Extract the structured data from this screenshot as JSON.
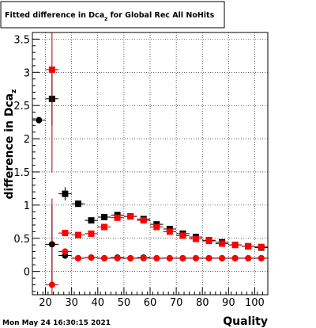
{
  "title": "Fitted difference in Dca",
  "title_subscript": "z",
  "title_suffix": " for Global Rec All NoHits",
  "timestamp": "Mon May 24 16:30:15 2021",
  "chart_data": {
    "type": "scatter",
    "title": "Fitted difference in Dca_z for Global Rec All NoHits",
    "xlabel": "Quality",
    "ylabel": "difference in Dca",
    "ylabel_subscript": "z",
    "xlim": [
      15,
      105
    ],
    "ylim": [
      -0.35,
      3.6
    ],
    "x_ticks": [
      20,
      30,
      40,
      50,
      60,
      70,
      80,
      90,
      100
    ],
    "y_ticks": [
      0,
      0.5,
      1,
      1.5,
      2,
      2.5,
      3,
      3.5
    ],
    "y_tick_labels": [
      "0",
      "0.5",
      "1",
      "1.5",
      "2",
      "2.5",
      "3",
      "3.5"
    ],
    "grid": true,
    "series": [
      {
        "marker": "square",
        "color": "#000000",
        "x": [
          22.5,
          27.5,
          32.5,
          37.5,
          42.5,
          47.5,
          52.5,
          57.5,
          62.5,
          67.5,
          72.5,
          77.5,
          82.5,
          87.5,
          92.5,
          97.5,
          102.5
        ],
        "y": [
          2.6,
          1.17,
          1.02,
          0.77,
          0.82,
          0.85,
          0.83,
          0.79,
          0.71,
          0.64,
          0.57,
          0.52,
          0.47,
          0.44,
          0.4,
          0.38,
          0.36
        ],
        "err": [
          0.4,
          0.1,
          0.05,
          0.03,
          0.03,
          0.03,
          0.03,
          0.03,
          0.03,
          0.03,
          0.02,
          0.02,
          0.02,
          0.02,
          0.02,
          0.02,
          0.02
        ]
      },
      {
        "marker": "square",
        "color": "#ff0000",
        "x": [
          22.5,
          27.5,
          32.5,
          37.5,
          42.5,
          47.5,
          52.5,
          57.5,
          62.5,
          67.5,
          72.5,
          77.5,
          82.5,
          87.5,
          92.5,
          97.5,
          102.5
        ],
        "y": [
          3.04,
          0.58,
          0.55,
          0.57,
          0.67,
          0.81,
          0.83,
          0.77,
          0.67,
          0.6,
          0.54,
          0.49,
          0.46,
          0.42,
          0.4,
          0.38,
          0.37
        ],
        "err": [
          1.55,
          0.05,
          0.03,
          0.03,
          0.03,
          0.03,
          0.03,
          0.03,
          0.03,
          0.03,
          0.02,
          0.02,
          0.02,
          0.02,
          0.02,
          0.02,
          0.02
        ]
      },
      {
        "marker": "circle",
        "color": "#000000",
        "x": [
          17.5,
          22.5,
          27.5,
          32.5,
          37.5,
          42.5,
          47.5,
          52.5,
          57.5,
          62.5,
          67.5,
          72.5,
          77.5,
          82.5,
          87.5,
          92.5,
          97.5,
          102.5
        ],
        "y": [
          2.28,
          0.41,
          0.24,
          0.2,
          0.21,
          0.2,
          0.21,
          0.2,
          0.21,
          0.2,
          0.2,
          0.2,
          0.2,
          0.2,
          0.2,
          0.2,
          0.2,
          0.2
        ],
        "err": [
          0.05,
          0.6,
          0.05,
          0.02,
          0.02,
          0.02,
          0.02,
          0.02,
          0.02,
          0.02,
          0.02,
          0.02,
          0.02,
          0.02,
          0.02,
          0.02,
          0.02,
          0.02
        ]
      },
      {
        "marker": "circle",
        "color": "#ff0000",
        "x": [
          22.5,
          27.5,
          32.5,
          37.5,
          42.5,
          47.5,
          52.5,
          57.5,
          62.5,
          67.5,
          72.5,
          77.5,
          82.5,
          87.5,
          92.5,
          97.5,
          102.5
        ],
        "y": [
          -0.2,
          0.3,
          0.2,
          0.21,
          0.2,
          0.2,
          0.2,
          0.2,
          0.2,
          0.2,
          0.2,
          0.2,
          0.2,
          0.2,
          0.2,
          0.2,
          0.2
        ],
        "err": [
          1.3,
          0.05,
          0.02,
          0.02,
          0.02,
          0.02,
          0.02,
          0.02,
          0.02,
          0.02,
          0.02,
          0.02,
          0.02,
          0.02,
          0.02,
          0.02,
          0.02
        ]
      }
    ]
  }
}
